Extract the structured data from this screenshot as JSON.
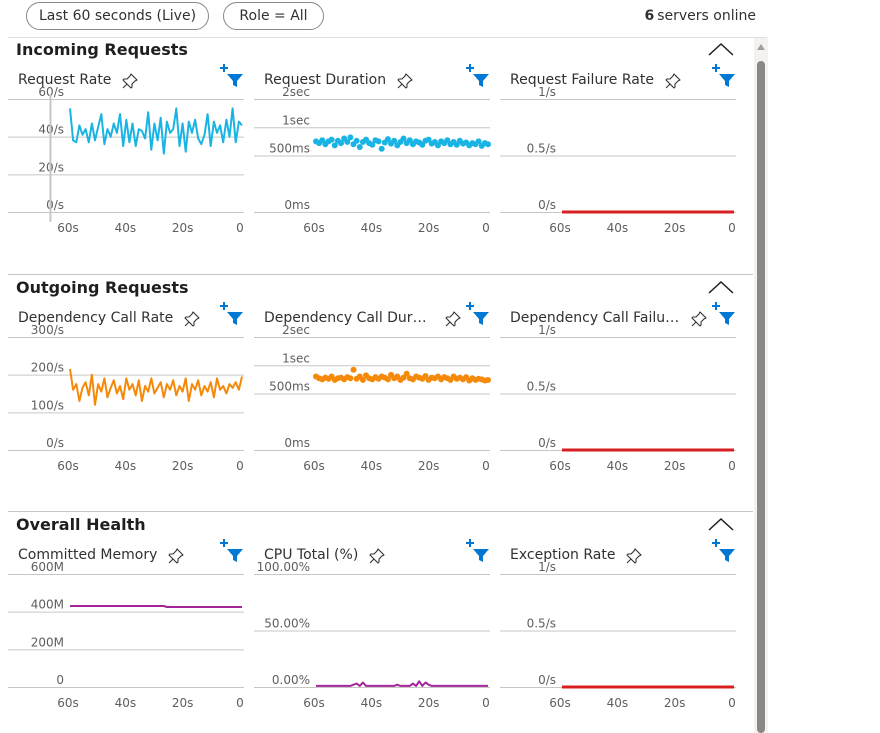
{
  "toolbar": {
    "time_range": "Last 60 seconds (Live)",
    "role_filter": "Role = All",
    "server_count": "6",
    "servers_label": "servers online"
  },
  "colors": {
    "blue": "#1ab4e4",
    "orange": "#f5890a",
    "purple": "#a2259a",
    "red": "#d81f1f",
    "filter_blue": "#0078d4"
  },
  "sections": [
    {
      "title": "Incoming Requests",
      "charts": [
        {
          "title": "Request Rate",
          "color": "#1ab4e4",
          "style": "line",
          "chart_data": {
            "type": "line",
            "yticks": [
              "60/s",
              "40/s",
              "20/s",
              "0/s"
            ],
            "ymax": 60,
            "xticks": [
              "60s",
              "40s",
              "20s",
              "0"
            ],
            "cursor_seconds_ago": 56,
            "values": [
              55,
              38,
              37,
              46,
              41,
              44,
              37,
              47,
              38,
              45,
              52,
              36,
              44,
              40,
              47,
              42,
              52,
              35,
              49,
              37,
              47,
              35,
              44,
              43,
              39,
              53,
              33,
              47,
              38,
              50,
              31,
              48,
              42,
              44,
              55,
              35,
              47,
              32,
              48,
              42,
              49,
              39,
              36,
              41,
              52,
              35,
              48,
              42,
              46,
              37,
              49,
              40,
              55,
              37,
              48,
              46
            ]
          }
        },
        {
          "title": "Request Duration",
          "color": "#1ab4e4",
          "style": "scatter",
          "chart_data": {
            "type": "scatter",
            "yticks": [
              "2sec",
              "1sec",
              "500ms",
              "0ms"
            ],
            "ytick_values": [
              2,
              1.5,
              1,
              0
            ],
            "ymax": 2,
            "xticks": [
              "60s",
              "40s",
              "20s",
              "0"
            ],
            "values": [
              1.25,
              1.22,
              1.27,
              1.2,
              1.25,
              1.28,
              1.18,
              1.26,
              1.22,
              1.3,
              1.24,
              1.32,
              1.2,
              1.26,
              1.15,
              1.24,
              1.28,
              1.22,
              1.19,
              1.27,
              1.25,
              1.12,
              1.23,
              1.29,
              1.21,
              1.26,
              1.18,
              1.24,
              1.3,
              1.22,
              1.27,
              1.2,
              1.25,
              1.23,
              1.19,
              1.26,
              1.28,
              1.21,
              1.24,
              1.18,
              1.25,
              1.22,
              1.27,
              1.2,
              1.24,
              1.19,
              1.26,
              1.21,
              1.23,
              1.18,
              1.22,
              1.2,
              1.25,
              1.17,
              1.22,
              1.2
            ]
          }
        },
        {
          "title": "Request Failure Rate",
          "color": "#d81f1f",
          "style": "flat",
          "chart_data": {
            "type": "line",
            "yticks": [
              "1/s",
              "0.5/s",
              "0/s"
            ],
            "ymax": 1,
            "xticks": [
              "60s",
              "40s",
              "20s",
              "0"
            ],
            "values": [
              0,
              0
            ]
          }
        }
      ]
    },
    {
      "title": "Outgoing Requests",
      "charts": [
        {
          "title": "Dependency Call Rate",
          "color": "#f5890a",
          "style": "line",
          "chart_data": {
            "type": "line",
            "yticks": [
              "300/s",
              "200/s",
              "100/s",
              "0/s"
            ],
            "ymax": 300,
            "xticks": [
              "60s",
              "40s",
              "20s",
              "0"
            ],
            "values": [
              215,
              160,
              175,
              130,
              165,
              180,
              145,
              200,
              120,
              175,
              155,
              190,
              140,
              165,
              185,
              150,
              170,
              135,
              190,
              160,
              175,
              145,
              185,
              130,
              170,
              155,
              190,
              150,
              165,
              180,
              140,
              175,
              160,
              185,
              145,
              170,
              155,
              190,
              130,
              175,
              160,
              185,
              145,
              170,
              155,
              180,
              140,
              190,
              160,
              170,
              150,
              175,
              165,
              180,
              160,
              195
            ]
          }
        },
        {
          "title": "Dependency Call Duration",
          "color": "#f5890a",
          "style": "scatter",
          "chart_data": {
            "type": "scatter",
            "yticks": [
              "2sec",
              "1sec",
              "500ms",
              "0ms"
            ],
            "ytick_values": [
              2,
              1.5,
              1,
              0
            ],
            "ymax": 2,
            "xticks": [
              "60s",
              "40s",
              "20s",
              "0"
            ],
            "values": [
              1.3,
              1.27,
              1.25,
              1.28,
              1.26,
              1.3,
              1.24,
              1.27,
              1.28,
              1.25,
              1.29,
              1.27,
              1.42,
              1.26,
              1.3,
              1.24,
              1.32,
              1.27,
              1.25,
              1.29,
              1.26,
              1.3,
              1.28,
              1.25,
              1.33,
              1.27,
              1.3,
              1.24,
              1.28,
              1.35,
              1.27,
              1.25,
              1.3,
              1.28,
              1.26,
              1.31,
              1.24,
              1.28,
              1.27,
              1.3,
              1.25,
              1.29,
              1.27,
              1.24,
              1.3,
              1.26,
              1.28,
              1.25,
              1.29,
              1.23,
              1.27,
              1.24,
              1.26,
              1.25,
              1.23,
              1.24
            ]
          }
        },
        {
          "title": "Dependency Call Failure ...",
          "color": "#d81f1f",
          "style": "flat",
          "chart_data": {
            "type": "line",
            "yticks": [
              "1/s",
              "0.5/s",
              "0/s"
            ],
            "ymax": 1,
            "xticks": [
              "60s",
              "40s",
              "20s",
              "0"
            ],
            "values": [
              0,
              0
            ]
          }
        }
      ]
    },
    {
      "title": "Overall Health",
      "charts": [
        {
          "title": "Committed Memory",
          "color": "#a2259a",
          "style": "line",
          "chart_data": {
            "type": "line",
            "yticks": [
              "600M",
              "400M",
              "200M",
              "0"
            ],
            "ymax": 600,
            "xticks": [
              "60s",
              "40s",
              "20s",
              "0"
            ],
            "values": [
              430,
              430,
              430,
              430,
              430,
              430,
              430,
              430,
              430,
              430,
              430,
              430,
              430,
              430,
              430,
              430,
              430,
              430,
              430,
              430,
              430,
              430,
              430,
              430,
              430,
              430,
              430,
              430,
              430,
              430,
              430,
              425,
              425,
              425,
              425,
              425,
              425,
              425,
              425,
              425,
              425,
              425,
              425,
              425,
              425,
              425,
              425,
              425,
              425,
              425,
              425,
              425,
              425,
              425,
              425,
              425
            ]
          }
        },
        {
          "title": "CPU Total (%)",
          "color": "#a2259a",
          "style": "line",
          "chart_data": {
            "type": "line",
            "yticks": [
              "100.00%",
              "50.00%",
              "0.00%"
            ],
            "ymax": 100,
            "xticks": [
              "60s",
              "40s",
              "20s",
              "0"
            ],
            "values": [
              1,
              1,
              1,
              1,
              1,
              1,
              1,
              1,
              1,
              1,
              1,
              1,
              2,
              3,
              1,
              4,
              1,
              1,
              1,
              1,
              1,
              1,
              1,
              1,
              1,
              1,
              2,
              1,
              1,
              1,
              1,
              3,
              1,
              5,
              1,
              4,
              2,
              1,
              1,
              1,
              1,
              1,
              1,
              1,
              1,
              1,
              1,
              1,
              1,
              1,
              1,
              1,
              1,
              1,
              1,
              1
            ]
          }
        },
        {
          "title": "Exception Rate",
          "color": "#d81f1f",
          "style": "flat",
          "chart_data": {
            "type": "line",
            "yticks": [
              "1/s",
              "0.5/s",
              "0/s"
            ],
            "ymax": 1,
            "xticks": [
              "60s",
              "40s",
              "20s",
              "0"
            ],
            "values": [
              0,
              0
            ]
          }
        }
      ]
    }
  ]
}
